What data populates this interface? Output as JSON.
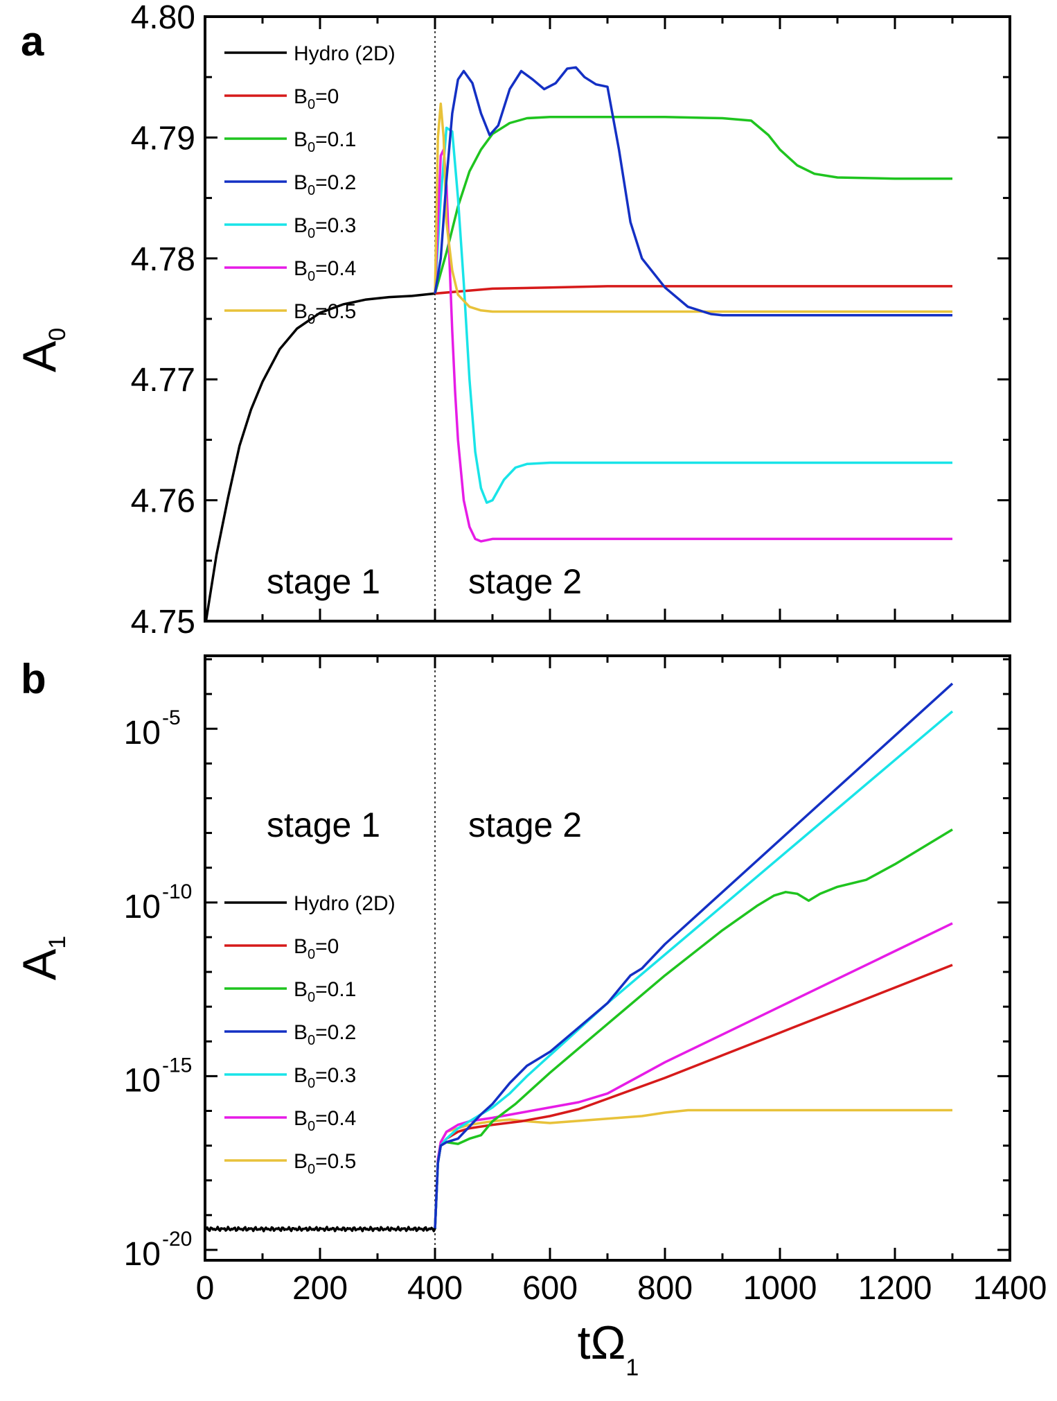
{
  "colors": {
    "Hydro (2D)": "#000000",
    "B0=0": "#d61a1a",
    "B0=0.1": "#1fc41f",
    "B0=0.2": "#1430c4",
    "B0=0.3": "#19e4e8",
    "B0=0.4": "#e61ce6",
    "B0=0.5": "#e8c23a"
  },
  "legend": [
    {
      "key": "Hydro (2D)",
      "text": "Hydro (2D)",
      "base": "",
      "sub": "",
      "rest": ""
    },
    {
      "key": "B0=0",
      "text": "",
      "base": "B",
      "sub": "0",
      "rest": "=0"
    },
    {
      "key": "B0=0.1",
      "text": "",
      "base": "B",
      "sub": "0",
      "rest": "=0.1"
    },
    {
      "key": "B0=0.2",
      "text": "",
      "base": "B",
      "sub": "0",
      "rest": "=0.2"
    },
    {
      "key": "B0=0.3",
      "text": "",
      "base": "B",
      "sub": "0",
      "rest": "=0.3"
    },
    {
      "key": "B0=0.4",
      "text": "",
      "base": "B",
      "sub": "0",
      "rest": "=0.4"
    },
    {
      "key": "B0=0.5",
      "text": "",
      "base": "B",
      "sub": "0",
      "rest": "=0.5"
    }
  ],
  "chart_data": [
    {
      "panel": "a",
      "type": "line",
      "ylabel": {
        "base": "A",
        "sub": "0"
      },
      "xlim": [
        0,
        1400
      ],
      "ylim": [
        4.75,
        4.8
      ],
      "yticks": [
        "4.75",
        "4.76",
        "4.77",
        "4.78",
        "4.79",
        "4.80"
      ],
      "xticks": [],
      "xlabel": "",
      "divider_x": 400,
      "annotations": [
        "stage 1",
        "stage 2"
      ],
      "legend_position": "top-left",
      "series": [
        {
          "key": "Hydro (2D)",
          "x": [
            0,
            20,
            40,
            60,
            80,
            100,
            130,
            160,
            200,
            240,
            280,
            320,
            360,
            400
          ],
          "y": [
            4.7495,
            4.7555,
            4.7602,
            4.7645,
            4.7675,
            4.7698,
            4.7725,
            4.7742,
            4.7755,
            4.7762,
            4.7766,
            4.7768,
            4.7769,
            4.7771
          ]
        },
        {
          "key": "B0=0",
          "x": [
            400,
            450,
            500,
            600,
            700,
            800,
            900,
            1000,
            1100,
            1200,
            1300
          ],
          "y": [
            4.7771,
            4.7773,
            4.7775,
            4.7776,
            4.7777,
            4.7777,
            4.7777,
            4.7777,
            4.7777,
            4.7777,
            4.7777
          ]
        },
        {
          "key": "B0=0.1",
          "x": [
            400,
            420,
            440,
            460,
            480,
            500,
            530,
            560,
            600,
            700,
            800,
            900,
            950,
            980,
            1000,
            1030,
            1060,
            1100,
            1200,
            1300
          ],
          "y": [
            4.7771,
            4.7805,
            4.7843,
            4.7872,
            4.789,
            4.7903,
            4.7912,
            4.7916,
            4.7917,
            4.7917,
            4.7917,
            4.7916,
            4.7914,
            4.7902,
            4.789,
            4.7877,
            4.787,
            4.7867,
            4.7866,
            4.7866
          ]
        },
        {
          "key": "B0=0.2",
          "x": [
            400,
            410,
            420,
            430,
            440,
            450,
            465,
            480,
            495,
            510,
            530,
            550,
            570,
            590,
            610,
            630,
            645,
            660,
            680,
            700,
            720,
            740,
            760,
            800,
            840,
            880,
            900,
            1000,
            1100,
            1200,
            1300
          ],
          "y": [
            4.7771,
            4.78,
            4.7865,
            4.792,
            4.7948,
            4.7955,
            4.7945,
            4.792,
            4.7902,
            4.791,
            4.794,
            4.7955,
            4.7948,
            4.794,
            4.7945,
            4.7957,
            4.7958,
            4.795,
            4.7944,
            4.7942,
            4.789,
            4.783,
            4.78,
            4.7776,
            4.776,
            4.7754,
            4.7753,
            4.7753,
            4.7753,
            4.7753,
            4.7753
          ]
        },
        {
          "key": "B0=0.3",
          "x": [
            400,
            410,
            420,
            430,
            440,
            450,
            460,
            470,
            480,
            490,
            500,
            520,
            540,
            560,
            600,
            700,
            800,
            900,
            1000,
            1100,
            1200,
            1300
          ],
          "y": [
            4.7771,
            4.785,
            4.7908,
            4.7905,
            4.785,
            4.778,
            4.77,
            4.764,
            4.761,
            4.7598,
            4.76,
            4.7617,
            4.7627,
            4.763,
            4.7631,
            4.7631,
            4.7631,
            4.7631,
            4.7631,
            4.7631,
            4.7631,
            4.7631
          ]
        },
        {
          "key": "B0=0.4",
          "x": [
            400,
            405,
            410,
            415,
            420,
            425,
            430,
            435,
            440,
            450,
            460,
            470,
            480,
            490,
            500,
            550,
            600,
            700,
            800,
            900,
            1000,
            1100,
            1200,
            1300
          ],
          "y": [
            4.7771,
            4.783,
            4.7885,
            4.789,
            4.786,
            4.78,
            4.774,
            4.769,
            4.765,
            4.76,
            4.7578,
            4.7568,
            4.7566,
            4.7567,
            4.7568,
            4.7568,
            4.7568,
            4.7568,
            4.7568,
            4.7568,
            4.7568,
            4.7568,
            4.7568,
            4.7568
          ]
        },
        {
          "key": "B0=0.5",
          "x": [
            400,
            405,
            410,
            415,
            420,
            430,
            440,
            460,
            480,
            500,
            550,
            600,
            700,
            800,
            900,
            1000,
            1100,
            1200,
            1300
          ],
          "y": [
            4.7771,
            4.79,
            4.7928,
            4.79,
            4.783,
            4.779,
            4.777,
            4.776,
            4.7757,
            4.7756,
            4.7756,
            4.7756,
            4.7756,
            4.7756,
            4.7756,
            4.7756,
            4.7756,
            4.7756,
            4.7756
          ]
        }
      ]
    },
    {
      "panel": "b",
      "type": "line",
      "ylabel": {
        "base": "A",
        "sub": "1"
      },
      "xlim": [
        0,
        1400
      ],
      "ylim_log10": [
        -20.3,
        -2.9
      ],
      "yticks": [
        {
          "base": "10",
          "exp": "-20"
        },
        {
          "base": "10",
          "exp": "-15"
        },
        {
          "base": "10",
          "exp": "-10"
        },
        {
          "base": "10",
          "exp": "-5"
        }
      ],
      "xticks": [
        "0",
        "200",
        "400",
        "600",
        "800",
        "1000",
        "1200",
        "1400"
      ],
      "xlabel": {
        "base": "tΩ",
        "sub": "1"
      },
      "divider_x": 400,
      "annotations": [
        "stage 1",
        "stage 2"
      ],
      "legend_position": "bottom-left",
      "series": [
        {
          "key": "Hydro (2D)",
          "noise": 0.06,
          "x": [
            0,
            400
          ],
          "log10_y": [
            -19.4,
            -19.4
          ]
        },
        {
          "key": "B0=0",
          "x": [
            400,
            405,
            410,
            420,
            440,
            460,
            500,
            550,
            600,
            650,
            700,
            800,
            900,
            1000,
            1100,
            1200,
            1300
          ],
          "log10_y": [
            -19.4,
            -17.5,
            -17.0,
            -16.8,
            -16.6,
            -16.5,
            -16.4,
            -16.3,
            -16.15,
            -15.95,
            -15.65,
            -15.05,
            -14.4,
            -13.75,
            -13.1,
            -12.45,
            -11.8
          ]
        },
        {
          "key": "B0=0.1",
          "x": [
            400,
            405,
            410,
            420,
            440,
            460,
            480,
            500,
            540,
            600,
            700,
            800,
            900,
            960,
            990,
            1010,
            1030,
            1050,
            1070,
            1100,
            1150,
            1200,
            1300
          ],
          "log10_y": [
            -19.4,
            -17.5,
            -17.0,
            -16.9,
            -16.95,
            -16.8,
            -16.7,
            -16.3,
            -15.8,
            -14.9,
            -13.5,
            -12.1,
            -10.8,
            -10.1,
            -9.8,
            -9.7,
            -9.75,
            -9.95,
            -9.75,
            -9.55,
            -9.35,
            -8.9,
            -7.9
          ]
        },
        {
          "key": "B0=0.2",
          "x": [
            400,
            405,
            410,
            420,
            440,
            460,
            480,
            500,
            530,
            560,
            600,
            650,
            700,
            740,
            760,
            800,
            900,
            1000,
            1100,
            1200,
            1300
          ],
          "log10_y": [
            -19.4,
            -17.5,
            -17.0,
            -16.9,
            -16.8,
            -16.45,
            -16.1,
            -15.8,
            -15.2,
            -14.7,
            -14.3,
            -13.6,
            -12.9,
            -12.1,
            -11.9,
            -11.2,
            -9.7,
            -8.2,
            -6.7,
            -5.2,
            -3.7
          ]
        },
        {
          "key": "B0=0.3",
          "x": [
            400,
            405,
            410,
            420,
            440,
            460,
            480,
            500,
            530,
            560,
            600,
            700,
            800,
            900,
            1000,
            1100,
            1200,
            1300
          ],
          "log10_y": [
            -19.4,
            -17.5,
            -17.0,
            -16.8,
            -16.5,
            -16.3,
            -16.1,
            -15.9,
            -15.5,
            -15.0,
            -14.4,
            -12.9,
            -11.5,
            -10.1,
            -8.7,
            -7.3,
            -5.9,
            -4.5
          ]
        },
        {
          "key": "B0=0.4",
          "x": [
            400,
            405,
            410,
            420,
            440,
            460,
            500,
            550,
            600,
            650,
            700,
            750,
            800,
            900,
            1000,
            1100,
            1200,
            1300
          ],
          "log10_y": [
            -19.4,
            -17.4,
            -16.9,
            -16.6,
            -16.4,
            -16.3,
            -16.2,
            -16.05,
            -15.9,
            -15.75,
            -15.5,
            -15.05,
            -14.6,
            -13.8,
            -13.0,
            -12.2,
            -11.4,
            -10.6
          ]
        },
        {
          "key": "B0=0.5",
          "x": [
            400,
            405,
            410,
            420,
            440,
            460,
            480,
            500,
            530,
            560,
            600,
            640,
            680,
            720,
            760,
            800,
            840,
            900,
            1000,
            1100,
            1200,
            1300
          ],
          "log10_y": [
            -19.4,
            -17.4,
            -16.9,
            -16.6,
            -16.5,
            -16.4,
            -16.35,
            -16.3,
            -16.25,
            -16.3,
            -16.35,
            -16.3,
            -16.25,
            -16.2,
            -16.15,
            -16.05,
            -15.98,
            -15.98,
            -15.98,
            -15.98,
            -15.98,
            -15.98
          ]
        }
      ]
    }
  ]
}
